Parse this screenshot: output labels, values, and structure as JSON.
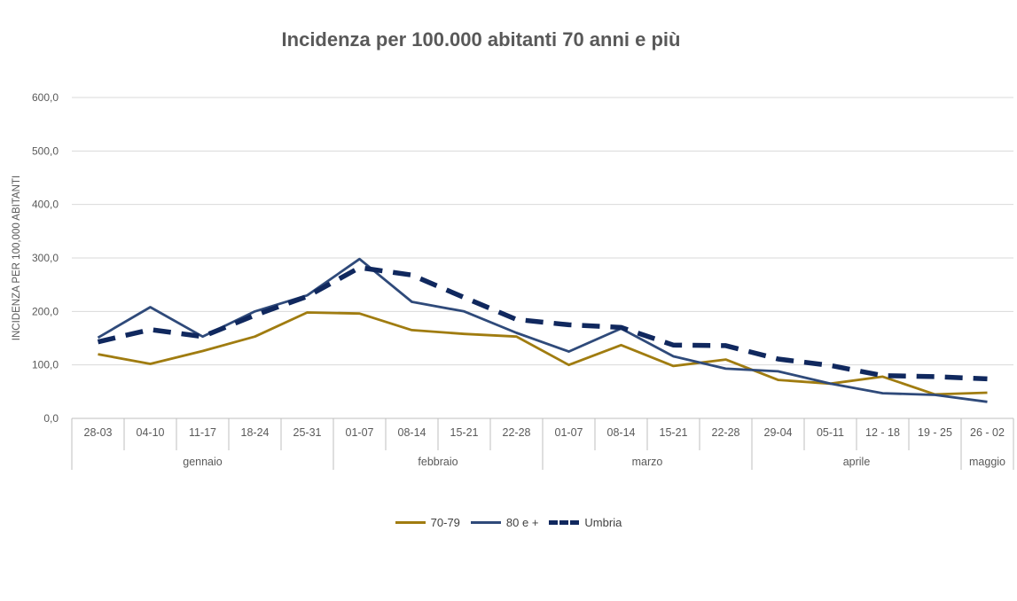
{
  "chart_data": {
    "type": "line",
    "title": "Incidenza per 100.000 abitanti 70 anni e più",
    "ylabel": "INCIDENZA PER 100,000 ABITANTI",
    "xlabel": "",
    "ylim": [
      0,
      600
    ],
    "yticks": [
      "0,0",
      "100,0",
      "200,0",
      "300,0",
      "400,0",
      "500,0",
      "600,0"
    ],
    "categories": [
      "28-03",
      "04-10",
      "11-17",
      "18-24",
      "25-31",
      "01-07",
      "08-14",
      "15-21",
      "22-28",
      "01-07",
      "08-14",
      "15-21",
      "22-28",
      "29-04",
      "05-11",
      "12 - 18",
      "19 - 25",
      "26 - 02"
    ],
    "groups": [
      {
        "label": "gennaio",
        "count": 5
      },
      {
        "label": "febbraio",
        "count": 4
      },
      {
        "label": "marzo",
        "count": 4
      },
      {
        "label": "aprile",
        "count": 4
      },
      {
        "label": "maggio",
        "count": 1
      }
    ],
    "grid": true,
    "legend_position": "bottom",
    "series": [
      {
        "name": "70-79",
        "color": "#a07c10",
        "style": "solid",
        "values": [
          120,
          102,
          126,
          153,
          198,
          196,
          165,
          158,
          153,
          100,
          137,
          98,
          110,
          72,
          65,
          78,
          45,
          48
        ]
      },
      {
        "name": "80 e +",
        "color": "#2f4a7a",
        "style": "solid",
        "values": [
          151,
          208,
          153,
          200,
          230,
          298,
          218,
          200,
          160,
          125,
          168,
          116,
          93,
          88,
          65,
          47,
          44,
          31
        ]
      },
      {
        "name": "Umbria",
        "color": "#10285e",
        "style": "dashed",
        "values": [
          143,
          166,
          153,
          193,
          228,
          282,
          268,
          226,
          185,
          175,
          170,
          137,
          136,
          111,
          99,
          80,
          78,
          74
        ]
      }
    ]
  }
}
